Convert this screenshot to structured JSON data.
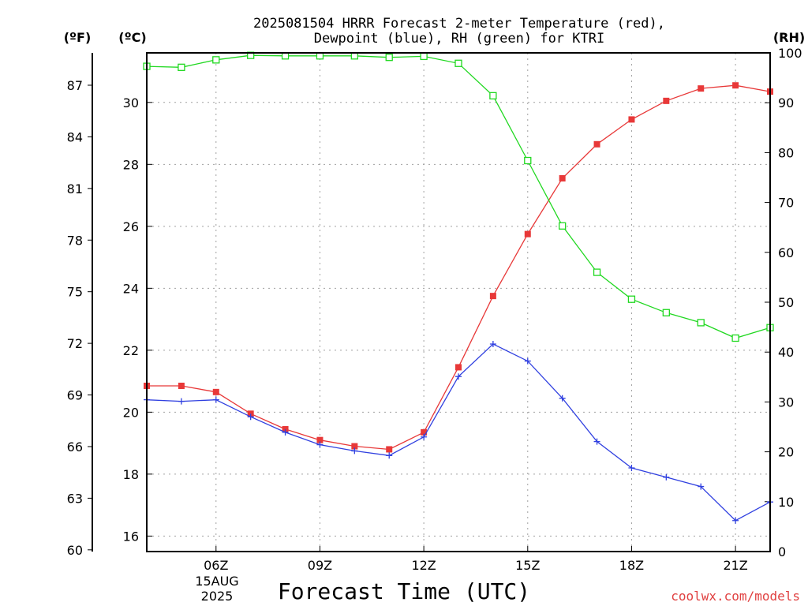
{
  "title_line1": "2025081504 HRRR Forecast 2-meter Temperature (red),",
  "title_line2": "Dewpoint (blue), RH (green) for KTRI",
  "units": {
    "left_outer": "(ºF)",
    "left_inner": "(ºC)",
    "right": "(RH)"
  },
  "date_label": {
    "day": "15AUG",
    "year": "2025"
  },
  "credit": "coolwx.com/models",
  "colors": {
    "temperature": "#e83838",
    "dewpoint": "#3040e0",
    "rh": "#20d820"
  },
  "chart_data": {
    "type": "line",
    "xlabel": "Forecast Time (UTC)",
    "x_hours": [
      4,
      5,
      6,
      7,
      8,
      9,
      10,
      11,
      12,
      13,
      14,
      15,
      16,
      17,
      18,
      19,
      20,
      21,
      22
    ],
    "xlim": [
      4,
      22
    ],
    "x_ticks": [
      {
        "hour": 6,
        "label": "06Z"
      },
      {
        "hour": 9,
        "label": "09Z"
      },
      {
        "hour": 12,
        "label": "12Z"
      },
      {
        "hour": 15,
        "label": "15Z"
      },
      {
        "hour": 18,
        "label": "18Z"
      },
      {
        "hour": 21,
        "label": "21Z"
      }
    ],
    "ylim_c": [
      15.5,
      31.6
    ],
    "yticks_c": [
      16,
      18,
      20,
      22,
      24,
      26,
      28,
      30
    ],
    "yticks_f": [
      60,
      63,
      66,
      69,
      72,
      75,
      78,
      81,
      84,
      87
    ],
    "ylim_rh": [
      0,
      100
    ],
    "yticks_rh": [
      0,
      10,
      20,
      30,
      40,
      50,
      60,
      70,
      80,
      90,
      100
    ],
    "grid": true,
    "series": [
      {
        "key": "temperature",
        "axis": "c",
        "marker": "square",
        "values": [
          20.85,
          20.85,
          20.65,
          19.95,
          19.45,
          19.1,
          18.9,
          18.8,
          19.35,
          21.45,
          23.75,
          25.75,
          27.55,
          28.65,
          29.45,
          30.05,
          30.45,
          30.55,
          30.35
        ]
      },
      {
        "key": "dewpoint",
        "axis": "c",
        "marker": "plus",
        "values": [
          20.4,
          20.35,
          20.4,
          19.85,
          19.35,
          18.95,
          18.75,
          18.6,
          19.2,
          21.15,
          22.2,
          21.65,
          20.45,
          19.05,
          18.2,
          17.9,
          17.6,
          16.5,
          17.1
        ]
      },
      {
        "key": "rh",
        "axis": "rh",
        "marker": "open-square",
        "values": [
          97.3,
          97.1,
          98.6,
          99.5,
          99.4,
          99.4,
          99.4,
          99.1,
          99.3,
          97.9,
          91.4,
          78.4,
          65.3,
          56.0,
          50.6,
          47.9,
          45.9,
          42.8,
          44.9
        ]
      }
    ]
  }
}
